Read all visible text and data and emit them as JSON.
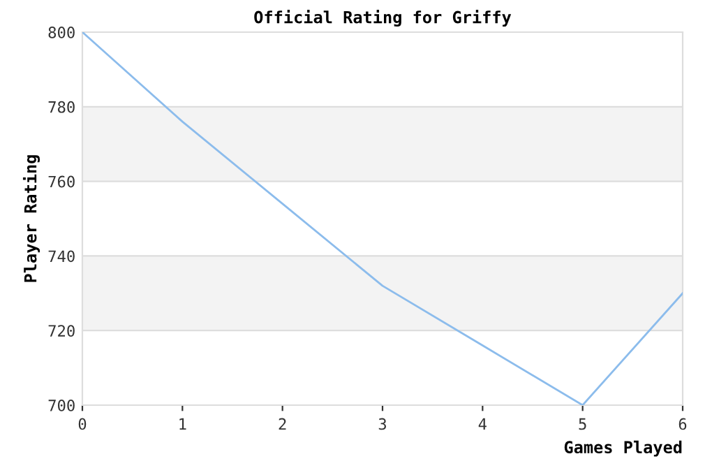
{
  "chart_data": {
    "type": "line",
    "title": "Official Rating for Griffy",
    "xlabel": "Games Played",
    "ylabel": "Player Rating",
    "x": [
      0,
      1,
      2,
      3,
      4,
      5,
      6
    ],
    "series": [
      {
        "color": "#8cbcec",
        "values": [
          800,
          776,
          754,
          732,
          716,
          700,
          730
        ]
      }
    ],
    "xlim": [
      0,
      6
    ],
    "xticks": [
      0,
      1,
      2,
      3,
      4,
      5,
      6
    ],
    "ylim": [
      700,
      800
    ],
    "yticks": [
      700,
      720,
      740,
      760,
      780,
      800
    ],
    "grid": "y",
    "marker": "none",
    "line_style": "solid",
    "bands": [
      {
        "axis": "y",
        "from": 720,
        "to": 740,
        "color": "#f3f3f3"
      },
      {
        "axis": "y",
        "from": 760,
        "to": 780,
        "color": "#f3f3f3"
      }
    ]
  }
}
